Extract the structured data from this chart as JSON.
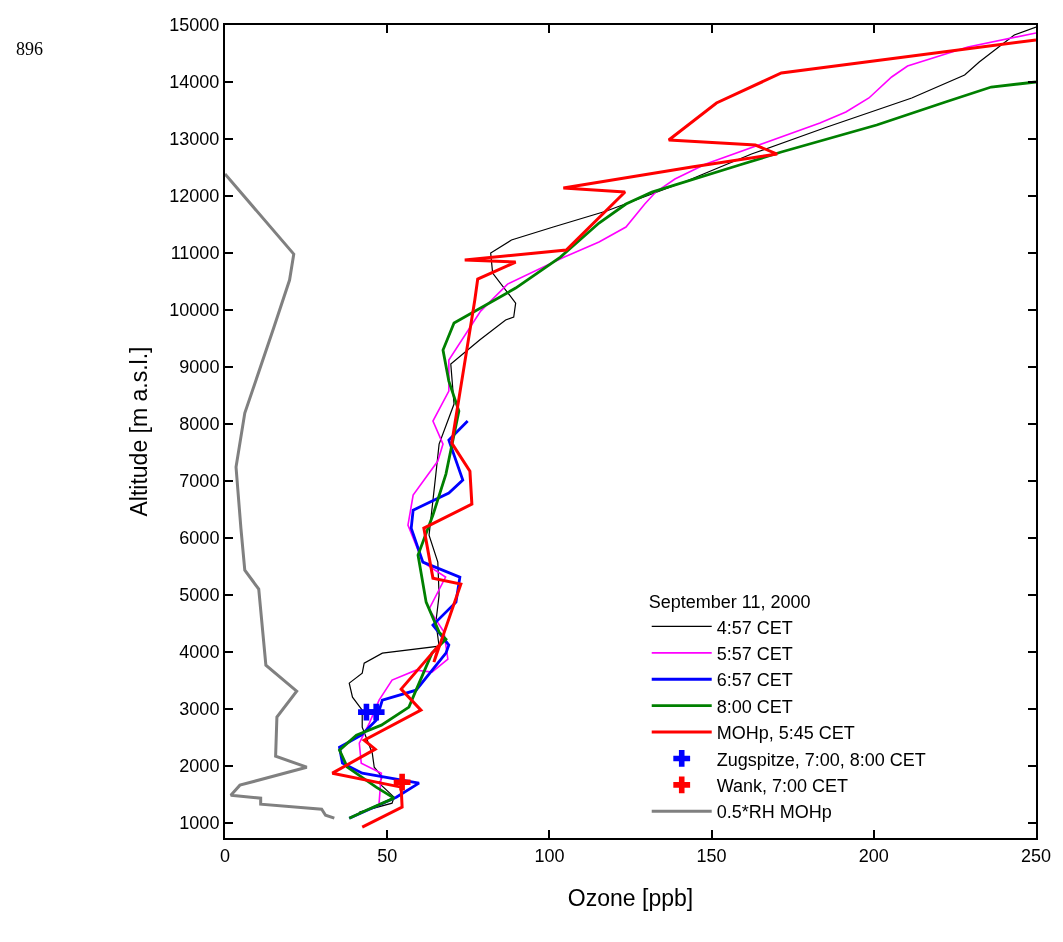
{
  "chart_data": {
    "type": "line",
    "xlabel": "Ozone [ppb]",
    "ylabel": "Altitude [m a.s.l.]",
    "legend_title": "September 11, 2000",
    "legend": "bottom right",
    "grid": false,
    "xlim": [
      0,
      250
    ],
    "xticks": [
      0,
      50,
      100,
      150,
      200,
      250
    ],
    "ylim": [
      740,
      15000
    ],
    "yticks": [
      1000,
      2000,
      3000,
      4000,
      5000,
      6000,
      7000,
      8000,
      9000,
      10000,
      11000,
      12000,
      13000,
      14000,
      15000
    ],
    "annotations": [
      "896"
    ],
    "series": [
      {
        "name": "4:57 CET",
        "color": "#000000",
        "x": [
          250,
          243.3,
          232.5,
          228,
          211.7,
          185.6,
          162.3,
          142.3,
          117.6,
          101.2,
          88.3,
          81.9,
          82.5,
          89.6,
          89,
          86.5,
          78.5,
          69.6,
          70.6,
          66,
          65,
          62.9,
          65.6,
          66,
          65,
          66,
          48.5,
          42.9,
          42.3,
          38.3,
          39.3,
          42.3,
          42.3,
          45.4,
          46,
          48.5,
          47.5,
          52.1,
          51.5,
          41.4
        ],
        "values": [
          14965,
          14825,
          14351,
          14123,
          13720,
          13211,
          12737,
          12263,
          11737,
          11456,
          11228,
          11000,
          10649,
          10123,
          9877,
          9825,
          9474,
          9053,
          8351,
          7649,
          7123,
          6053,
          5579,
          5000,
          4526,
          4105,
          3983,
          3807,
          3632,
          3456,
          3211,
          2982,
          2684,
          2228,
          1982,
          1807,
          1702,
          1456,
          1351,
          1193
        ]
      },
      {
        "name": "5:57 CET",
        "color": "#ff00ff",
        "x": [
          250,
          229,
          210.4,
          205.5,
          198.5,
          191.4,
          183.4,
          148.2,
          138.7,
          132.8,
          129.4,
          123.6,
          115.3,
          104.6,
          87.1,
          78.8,
          69,
          69,
          64.1,
          67.2,
          65.6,
          58,
          56.4,
          61,
          68,
          62.9,
          67.5,
          68.7,
          63.8,
          58.9,
          51.5,
          47.5,
          44.5,
          41.4,
          42,
          48.2,
          47.5
        ],
        "values": [
          14860,
          14614,
          14281,
          14088,
          13720,
          13474,
          13281,
          12561,
          12298,
          12070,
          11860,
          11456,
          11193,
          10930,
          10456,
          9982,
          9123,
          8579,
          8053,
          7649,
          7351,
          6754,
          6228,
          5579,
          5316,
          4754,
          4351,
          3877,
          3649,
          3684,
          3509,
          3158,
          2754,
          2404,
          2053,
          1877,
          1351
        ]
      },
      {
        "name": "6:57 CET",
        "color": "#0000ff",
        "x": [
          74.8,
          69,
          73.3,
          69,
          58,
          57.4,
          61,
          72.4,
          71.2,
          64.1,
          69,
          68.1,
          58.9,
          48.5,
          46.6,
          42,
          35.3,
          36.2,
          42.3,
          59.8,
          52.8,
          38.3
        ],
        "values": [
          8053,
          7719,
          7018,
          6789,
          6491,
          6175,
          5579,
          5316,
          4877,
          4474,
          4123,
          3983,
          3333,
          3158,
          2807,
          2544,
          2333,
          2053,
          1877,
          1702,
          1456,
          1088
        ]
      },
      {
        "name": "8:00 CET",
        "color": "#008000",
        "x": [
          250,
          236.2,
          222.1,
          200.9,
          171.5,
          158.6,
          131.6,
          123.6,
          115.3,
          103.4,
          89.6,
          70.6,
          67.2,
          69,
          72.1,
          68.1,
          64.1,
          59.5,
          62,
          66,
          68.1,
          63.8,
          58.9,
          56.7,
          48.2,
          40.5,
          35.3,
          37.7,
          46.6,
          52.1,
          43.6,
          38.3
        ],
        "values": [
          14000,
          13912,
          13649,
          13246,
          12772,
          12544,
          12070,
          11860,
          11526,
          10930,
          10386,
          9772,
          9298,
          8754,
          8228,
          7123,
          6404,
          5702,
          4877,
          4351,
          4228,
          3983,
          3333,
          3035,
          2719,
          2544,
          2281,
          1982,
          1632,
          1439,
          1228,
          1088
        ]
      },
      {
        "name": "MOHp, 5:45 CET",
        "color": "#ff0000",
        "x": [
          250,
          171.5,
          151.5,
          136.8,
          163.5,
          170.2,
          143.9,
          104.3,
          123.3,
          105.2,
          73.9,
          89.6,
          77.9,
          77,
          69.9,
          75.5,
          76.1,
          61.3,
          64.1,
          72.7,
          64.4,
          66,
          54.3,
          60.4,
          42.9,
          46.3,
          33.1,
          54.3,
          54.6,
          42.3
        ],
        "values": [
          14737,
          14158,
          13632,
          12982,
          12895,
          12737,
          12509,
          12140,
          12070,
          11053,
          10877,
          10842,
          10544,
          10175,
          7667,
          7175,
          6596,
          6175,
          5298,
          5193,
          3825,
          4123,
          3351,
          2982,
          2456,
          2298,
          1877,
          1632,
          1281,
          930
        ]
      },
      {
        "name": "Zugspitze, 7:00, 8:00 CET",
        "type": "scatter",
        "marker": "cross",
        "color": "#0000ff",
        "x": [
          43.6,
          46.6
        ],
        "values": [
          2947,
          2947
        ]
      },
      {
        "name": "Wank, 7:00 CET",
        "type": "scatter",
        "marker": "cross",
        "color": "#ff0000",
        "x": [
          54.6
        ],
        "values": [
          1719
        ]
      },
      {
        "name": "0.5*RH MOHp",
        "color": "#808080",
        "x": [
          0,
          21.2,
          19.9,
          15,
          6.1,
          3.4,
          4.9,
          6.1,
          10.4,
          12.6,
          22.1,
          16,
          15.6,
          25.2,
          4.6,
          1.8,
          11,
          11,
          29.8,
          31,
          33.7
        ],
        "values": [
          12386,
          10982,
          10526,
          9684,
          8193,
          7246,
          6175,
          5439,
          5105,
          3772,
          3316,
          2860,
          2175,
          1982,
          1667,
          1491,
          1439,
          1333,
          1246,
          1140,
          1088
        ]
      }
    ]
  }
}
